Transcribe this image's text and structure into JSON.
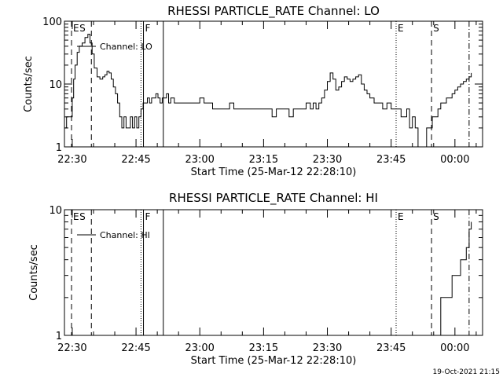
{
  "timestamp": "19-Oct-2021 21:15",
  "chart_data": [
    {
      "type": "line",
      "title": "RHESSI PARTICLE_RATE Channel: LO",
      "xlabel": "Start Time (25-Mar-12 22:28:10)",
      "ylabel": "Counts/sec",
      "yscale": "log",
      "ylim": [
        1,
        100
      ],
      "xlim": [
        "22:28:10",
        "00:06:30"
      ],
      "x_ticks": [
        "22:30",
        "22:45",
        "23:00",
        "23:15",
        "23:30",
        "23:45",
        "00:00"
      ],
      "y_ticks": [
        "1",
        "10",
        "100"
      ],
      "legend": {
        "label": "Channel: LO",
        "position": "top-left"
      },
      "markers": [
        {
          "time": "22:29:50",
          "style": "dashed",
          "label": "E"
        },
        {
          "time": "22:31:20",
          "style": "none",
          "label": "S"
        },
        {
          "time": "22:34:30",
          "style": "dashed",
          "label": ""
        },
        {
          "time": "22:46:10",
          "style": "dotted",
          "label": ""
        },
        {
          "time": "22:46:45",
          "style": "solid",
          "label": "F"
        },
        {
          "time": "22:51:25",
          "style": "solid",
          "label": ""
        },
        {
          "time": "23:46:10",
          "style": "dotted",
          "label": "E"
        },
        {
          "time": "23:54:30",
          "style": "dashed",
          "label": "S"
        },
        {
          "time": "00:03:20",
          "style": "dashdot",
          "label": ""
        }
      ],
      "series": [
        {
          "name": "Channel: LO",
          "x": [
            "22:28:10",
            "22:28:40",
            "22:29:20",
            "22:30:00",
            "22:30:20",
            "22:30:40",
            "22:31:10",
            "22:31:40",
            "22:32:20",
            "22:33:00",
            "22:33:40",
            "22:34:10",
            "22:34:40",
            "22:35:10",
            "22:35:50",
            "22:36:30",
            "22:37:10",
            "22:37:40",
            "22:38:10",
            "22:38:40",
            "22:39:10",
            "22:39:40",
            "22:40:10",
            "22:40:40",
            "22:41:10",
            "22:41:40",
            "22:42:10",
            "22:42:40",
            "22:43:10",
            "22:43:40",
            "22:44:10",
            "22:44:40",
            "22:45:10",
            "22:45:40",
            "22:46:10",
            "22:46:40",
            "22:47:10",
            "22:47:40",
            "22:48:10",
            "22:48:40",
            "22:49:10",
            "22:49:40",
            "22:50:10",
            "22:50:40",
            "22:51:10",
            "22:51:40",
            "22:52:10",
            "22:52:40",
            "22:53:10",
            "22:54:00",
            "22:55:00",
            "22:56:00",
            "22:57:00",
            "22:58:00",
            "22:59:00",
            "23:00:00",
            "23:01:00",
            "23:02:00",
            "23:03:00",
            "23:04:00",
            "23:05:00",
            "23:06:00",
            "23:07:00",
            "23:08:00",
            "23:09:00",
            "23:10:00",
            "23:11:00",
            "23:12:00",
            "23:13:00",
            "23:14:00",
            "23:15:00",
            "23:16:00",
            "23:17:00",
            "23:18:00",
            "23:19:00",
            "23:20:00",
            "23:21:00",
            "23:22:00",
            "23:23:00",
            "23:24:00",
            "23:25:00",
            "23:26:00",
            "23:26:40",
            "23:27:20",
            "23:28:00",
            "23:28:40",
            "23:29:20",
            "23:30:00",
            "23:30:40",
            "23:31:20",
            "23:32:00",
            "23:32:40",
            "23:33:20",
            "23:34:00",
            "23:34:40",
            "23:35:20",
            "23:36:00",
            "23:36:40",
            "23:37:20",
            "23:38:00",
            "23:38:40",
            "23:39:20",
            "23:40:00",
            "23:41:00",
            "23:42:00",
            "23:43:00",
            "23:44:00",
            "23:45:00",
            "23:46:00",
            "23:46:40",
            "23:47:20",
            "23:48:00",
            "23:48:40",
            "23:49:20",
            "23:50:00",
            "23:50:40",
            "23:51:20",
            "23:52:00",
            "23:52:40",
            "23:53:20",
            "23:54:00",
            "23:54:40",
            "23:55:20",
            "23:56:00",
            "23:56:40",
            "23:57:20",
            "23:58:00",
            "23:58:40",
            "23:59:20",
            "00:00:00",
            "00:00:40",
            "00:01:20",
            "00:02:00",
            "00:02:40",
            "00:03:20",
            "00:03:50"
          ],
          "values": [
            2,
            3,
            3,
            6,
            12,
            20,
            32,
            40,
            45,
            55,
            62,
            45,
            30,
            18,
            13,
            12,
            13,
            14,
            16,
            15,
            12,
            9,
            7,
            5,
            3,
            2,
            3,
            2,
            2,
            3,
            2,
            3,
            2,
            3,
            4,
            5,
            5,
            6,
            5,
            6,
            6,
            7,
            6,
            5,
            6,
            6,
            7,
            5,
            6,
            5,
            5,
            5,
            5,
            5,
            5,
            6,
            5,
            5,
            4,
            4,
            4,
            4,
            5,
            4,
            4,
            4,
            4,
            4,
            4,
            4,
            4,
            4,
            3,
            4,
            4,
            4,
            3,
            4,
            4,
            4,
            5,
            4,
            5,
            4,
            5,
            6,
            8,
            11,
            15,
            12,
            8,
            9,
            11,
            13,
            12,
            11,
            12,
            13,
            14,
            10,
            8,
            7,
            6,
            5,
            5,
            4,
            5,
            4,
            4,
            4,
            3,
            3,
            4,
            2,
            3,
            2,
            1,
            1,
            1,
            2,
            2,
            3,
            3,
            4,
            5,
            5,
            6,
            6,
            7,
            8,
            9,
            10,
            11,
            12,
            13,
            15
          ]
        }
      ]
    },
    {
      "type": "line",
      "title": "RHESSI PARTICLE_RATE Channel: HI",
      "xlabel": "Start Time (25-Mar-12 22:28:10)",
      "ylabel": "Counts/sec",
      "yscale": "log",
      "ylim": [
        1,
        10
      ],
      "xlim": [
        "22:28:10",
        "00:06:30"
      ],
      "x_ticks": [
        "22:30",
        "22:45",
        "23:00",
        "23:15",
        "23:30",
        "23:45",
        "00:00"
      ],
      "y_ticks": [
        "1",
        "10"
      ],
      "legend": {
        "label": "Channel: HI",
        "position": "top-left"
      },
      "markers": [
        {
          "time": "22:29:50",
          "style": "dashed",
          "label": "E"
        },
        {
          "time": "22:31:20",
          "style": "none",
          "label": "S"
        },
        {
          "time": "22:34:30",
          "style": "dashed",
          "label": ""
        },
        {
          "time": "22:46:10",
          "style": "dotted",
          "label": ""
        },
        {
          "time": "22:46:45",
          "style": "solid",
          "label": "F"
        },
        {
          "time": "22:51:25",
          "style": "solid",
          "label": ""
        },
        {
          "time": "23:46:10",
          "style": "dotted",
          "label": "E"
        },
        {
          "time": "23:54:30",
          "style": "dashed",
          "label": "S"
        },
        {
          "time": "00:03:20",
          "style": "dashdot",
          "label": ""
        }
      ],
      "series": [
        {
          "name": "Channel: HI",
          "x": [
            "23:56:00",
            "23:56:40",
            "23:57:20",
            "23:58:00",
            "23:58:40",
            "23:59:20",
            "00:00:00",
            "00:00:40",
            "00:01:20",
            "00:02:00",
            "00:02:40",
            "00:03:20",
            "00:03:50"
          ],
          "values": [
            1,
            2,
            2,
            2,
            2,
            3,
            3,
            3,
            4,
            4,
            5,
            7,
            8
          ]
        }
      ]
    }
  ]
}
